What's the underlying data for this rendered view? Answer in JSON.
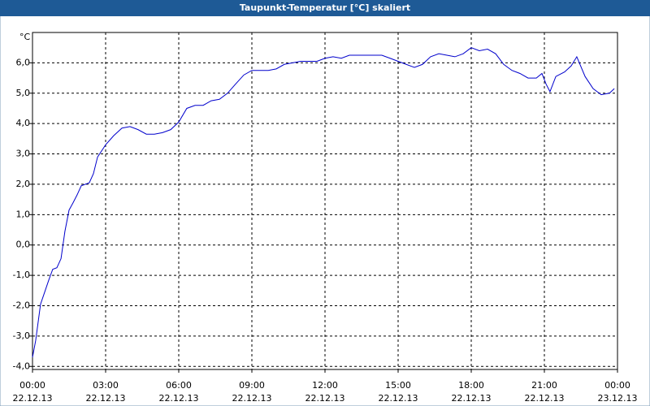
{
  "chart_data": {
    "type": "line",
    "title": "Taupunkt-Temperatur [°C] skaliert",
    "y_unit": "°C",
    "color": "#0000cc",
    "grid": true,
    "xlim": [
      0,
      24
    ],
    "ylim": [
      -4.1,
      7.0
    ],
    "xticks": [
      {
        "value": 0,
        "label": "00:00",
        "date": "22.12.13"
      },
      {
        "value": 3,
        "label": "03:00",
        "date": "22.12.13"
      },
      {
        "value": 6,
        "label": "06:00",
        "date": "22.12.13"
      },
      {
        "value": 9,
        "label": "09:00",
        "date": "22.12.13"
      },
      {
        "value": 12,
        "label": "12:00",
        "date": "22.12.13"
      },
      {
        "value": 15,
        "label": "15:00",
        "date": "22.12.13"
      },
      {
        "value": 18,
        "label": "18:00",
        "date": "22.12.13"
      },
      {
        "value": 21,
        "label": "21:00",
        "date": "22.12.13"
      },
      {
        "value": 24,
        "label": "00:00",
        "date": "23.12.13"
      }
    ],
    "yticks": [
      {
        "value": -4,
        "label": "-4,0"
      },
      {
        "value": -3,
        "label": "-3,0"
      },
      {
        "value": -2,
        "label": "-2,0"
      },
      {
        "value": -1,
        "label": "-1,0"
      },
      {
        "value": 0,
        "label": "0,0"
      },
      {
        "value": 1,
        "label": "1,0"
      },
      {
        "value": 2,
        "label": "2,0"
      },
      {
        "value": 3,
        "label": "3,0"
      },
      {
        "value": 4,
        "label": "4,0"
      },
      {
        "value": 5,
        "label": "5,0"
      },
      {
        "value": 6,
        "label": "6,0"
      }
    ],
    "x": [
      0,
      0.13,
      0.33,
      0.5,
      0.67,
      0.83,
      1,
      1.17,
      1.33,
      1.5,
      1.67,
      1.83,
      2,
      2.33,
      2.5,
      2.67,
      3,
      3.33,
      3.67,
      4,
      4.33,
      4.67,
      5,
      5.33,
      5.67,
      6,
      6.33,
      6.67,
      7,
      7.33,
      7.67,
      8,
      8.33,
      8.67,
      9,
      9.33,
      9.67,
      10,
      10.33,
      10.67,
      11,
      11.33,
      11.67,
      12,
      12.33,
      12.67,
      13,
      13.33,
      13.67,
      14,
      14.33,
      14.67,
      15,
      15.33,
      15.67,
      16,
      16.33,
      16.67,
      17,
      17.33,
      17.67,
      18,
      18.33,
      18.67,
      19,
      19.33,
      19.67,
      20,
      20.33,
      20.67,
      20.9,
      21.07,
      21.23,
      21.47,
      21.83,
      22.1,
      22.33,
      22.67,
      23,
      23.33,
      23.67,
      23.87
    ],
    "values": [
      -3.7,
      -3.15,
      -1.95,
      -1.55,
      -1.15,
      -0.8,
      -0.75,
      -0.45,
      0.45,
      1.15,
      1.4,
      1.65,
      1.95,
      2.05,
      2.35,
      2.9,
      3.3,
      3.6,
      3.85,
      3.9,
      3.8,
      3.65,
      3.65,
      3.7,
      3.8,
      4.05,
      4.5,
      4.6,
      4.6,
      4.75,
      4.8,
      5.0,
      5.3,
      5.6,
      5.75,
      5.75,
      5.75,
      5.8,
      5.95,
      6.0,
      6.05,
      6.05,
      6.05,
      6.15,
      6.2,
      6.15,
      6.25,
      6.25,
      6.25,
      6.25,
      6.25,
      6.15,
      6.05,
      5.95,
      5.85,
      5.95,
      6.2,
      6.3,
      6.25,
      6.2,
      6.3,
      6.5,
      6.4,
      6.45,
      6.3,
      5.95,
      5.75,
      5.65,
      5.5,
      5.5,
      5.65,
      5.3,
      5.05,
      5.55,
      5.7,
      5.9,
      6.2,
      5.55,
      5.15,
      4.95,
      5.0,
      5.15
    ]
  }
}
